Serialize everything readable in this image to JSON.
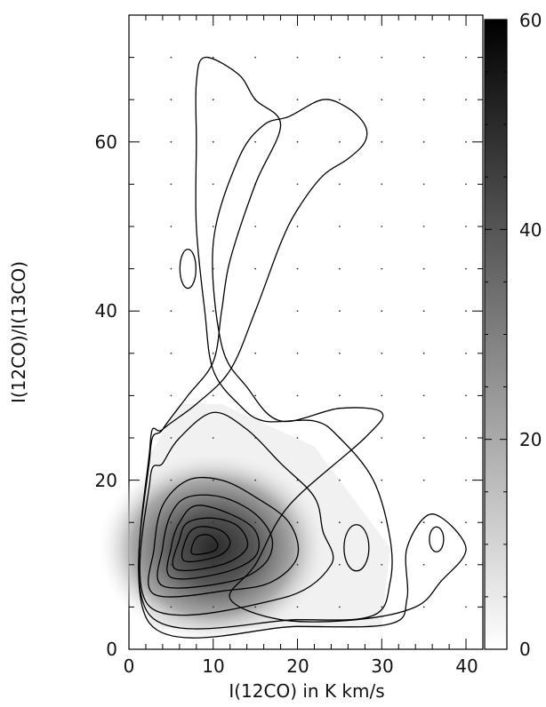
{
  "chart_data": {
    "type": "heatmap",
    "title": "",
    "xlabel": "I(12CO) in K km/s",
    "ylabel": "I(12CO)/I(13CO)",
    "xlim": [
      0,
      42
    ],
    "ylim": [
      0,
      75
    ],
    "x_ticks": [
      "0",
      "10",
      "20",
      "30",
      "40"
    ],
    "y_ticks": [
      "0",
      "20",
      "40",
      "60"
    ],
    "colorbar": {
      "min": 0,
      "max": 60,
      "ticks": [
        "0",
        "20",
        "40",
        "60"
      ],
      "colormap": "white-to-black"
    },
    "peak": {
      "x": 8.5,
      "y": 12.5,
      "value": 58
    },
    "grid_dots": true,
    "contours": [
      {
        "level": 1,
        "points": [
          [
            2.5,
            3
          ],
          [
            20,
            2.7
          ],
          [
            31,
            3
          ],
          [
            33,
            6
          ],
          [
            33,
            12
          ],
          [
            36,
            16
          ],
          [
            40,
            12
          ],
          [
            37,
            8
          ],
          [
            34,
            5
          ],
          [
            27,
            3.5
          ],
          [
            18,
            3.5
          ],
          [
            12,
            6
          ],
          [
            15,
            10
          ],
          [
            19,
            17
          ],
          [
            28,
            25
          ],
          [
            30,
            28
          ],
          [
            25,
            28.5
          ],
          [
            18,
            27
          ],
          [
            14,
            31
          ],
          [
            11,
            36
          ],
          [
            10,
            48
          ],
          [
            13,
            58
          ],
          [
            16,
            62
          ],
          [
            19,
            63
          ],
          [
            23,
            65
          ],
          [
            26,
            64
          ],
          [
            28,
            62
          ],
          [
            28,
            60
          ],
          [
            26,
            58
          ],
          [
            23,
            56
          ],
          [
            20,
            52
          ],
          [
            18,
            48
          ],
          [
            15,
            40
          ],
          [
            12,
            33
          ],
          [
            8,
            29
          ],
          [
            4,
            26
          ],
          [
            2.5,
            24
          ]
        ]
      },
      {
        "level": 2,
        "points": [
          [
            2.5,
            4
          ],
          [
            20,
            3.5
          ],
          [
            29,
            4
          ],
          [
            31,
            8
          ],
          [
            31,
            13
          ],
          [
            29,
            20
          ],
          [
            25,
            25
          ],
          [
            22,
            27
          ],
          [
            16,
            27
          ],
          [
            13,
            29
          ],
          [
            10,
            33
          ],
          [
            9,
            40
          ],
          [
            8,
            50
          ],
          [
            8,
            60
          ],
          [
            8,
            67
          ],
          [
            9,
            70
          ],
          [
            13,
            68
          ],
          [
            15,
            65
          ],
          [
            18,
            62
          ],
          [
            15,
            55
          ],
          [
            12,
            46
          ],
          [
            11,
            40
          ],
          [
            10,
            34
          ],
          [
            7,
            30
          ],
          [
            4,
            26
          ],
          [
            2.5,
            23
          ]
        ]
      },
      {
        "level": 3,
        "points": [
          [
            2.5,
            5
          ],
          [
            18,
            6
          ],
          [
            24,
            10
          ],
          [
            23,
            14
          ],
          [
            22,
            18
          ],
          [
            18,
            22
          ],
          [
            14,
            26
          ],
          [
            10,
            28
          ],
          [
            6,
            25
          ],
          [
            4,
            22
          ],
          [
            2.5,
            20
          ]
        ]
      },
      {
        "level": 4,
        "points": [
          [
            3,
            6.5
          ],
          [
            12,
            7
          ],
          [
            17,
            8
          ],
          [
            20,
            11
          ],
          [
            19,
            15
          ],
          [
            15,
            18
          ],
          [
            11,
            20
          ],
          [
            7,
            20
          ],
          [
            4,
            17
          ],
          [
            3,
            12
          ]
        ]
      },
      {
        "level": 5,
        "points": [
          [
            4,
            7.5
          ],
          [
            12,
            8
          ],
          [
            16,
            10
          ],
          [
            17,
            13
          ],
          [
            15,
            16
          ],
          [
            11,
            18
          ],
          [
            7,
            18
          ],
          [
            5,
            16
          ],
          [
            4,
            12
          ]
        ]
      },
      {
        "level": 6,
        "points": [
          [
            5,
            8.5
          ],
          [
            11,
            9
          ],
          [
            15,
            11
          ],
          [
            15,
            14
          ],
          [
            12,
            16
          ],
          [
            8,
            17
          ],
          [
            6,
            15
          ],
          [
            5,
            12
          ]
        ]
      },
      {
        "level": 7,
        "points": [
          [
            5.5,
            9.5
          ],
          [
            11,
            10
          ],
          [
            14,
            12
          ],
          [
            13,
            14.5
          ],
          [
            10,
            15.5
          ],
          [
            7,
            15
          ],
          [
            6,
            13
          ]
        ]
      },
      {
        "level": 8,
        "points": [
          [
            6.5,
            10.5
          ],
          [
            10.5,
            11
          ],
          [
            12,
            12.5
          ],
          [
            11,
            14
          ],
          [
            8.5,
            14.5
          ],
          [
            7,
            13.5
          ]
        ]
      },
      {
        "level": 9,
        "points": [
          [
            7.5,
            11.3
          ],
          [
            10,
            11.6
          ],
          [
            10.5,
            12.5
          ],
          [
            9.5,
            13.5
          ],
          [
            8,
            13.2
          ]
        ]
      }
    ]
  }
}
